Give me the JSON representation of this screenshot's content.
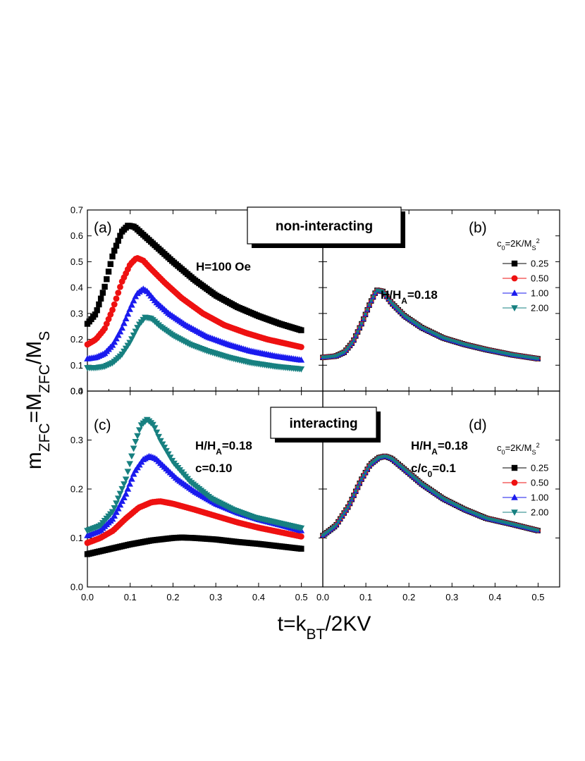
{
  "figure": {
    "y_axis_label": "m_ZFC=M_ZFC/M_S",
    "x_axis_label": "t=k_BT/2KV",
    "box_top": "non-interacting",
    "box_bottom": "interacting"
  },
  "colors": {
    "0.25": "#000000",
    "0.50": "#ee1111",
    "1.00": "#1a1aee",
    "2.00": "#178080"
  },
  "chart_data": [
    {
      "panel": "a",
      "type": "scatter",
      "label": "(a)",
      "annotations": [
        "H=100 Oe"
      ],
      "xlim": [
        0,
        0.55
      ],
      "ylim": [
        0,
        0.7
      ],
      "x_ticks": [
        "0.0",
        "0.1",
        "0.2",
        "0.3",
        "0.4",
        "0.5"
      ],
      "y_ticks": [
        "0.0",
        "0.1",
        "0.2",
        "0.3",
        "0.4",
        "0.5",
        "0.6",
        "0.7"
      ],
      "series": [
        {
          "marker": "square",
          "color": "#000000",
          "x": [
            0,
            0.02,
            0.04,
            0.06,
            0.08,
            0.095,
            0.11,
            0.13,
            0.16,
            0.2,
            0.25,
            0.3,
            0.35,
            0.4,
            0.45,
            0.5
          ],
          "y": [
            0.26,
            0.3,
            0.4,
            0.53,
            0.615,
            0.64,
            0.635,
            0.605,
            0.56,
            0.5,
            0.43,
            0.37,
            0.325,
            0.29,
            0.26,
            0.235
          ]
        },
        {
          "marker": "circle",
          "color": "#ee1111",
          "x": [
            0,
            0.02,
            0.04,
            0.06,
            0.08,
            0.1,
            0.115,
            0.13,
            0.15,
            0.18,
            0.22,
            0.27,
            0.32,
            0.37,
            0.42,
            0.46,
            0.5
          ],
          "y": [
            0.18,
            0.2,
            0.24,
            0.32,
            0.42,
            0.49,
            0.515,
            0.505,
            0.47,
            0.42,
            0.36,
            0.3,
            0.255,
            0.225,
            0.2,
            0.185,
            0.17
          ]
        },
        {
          "marker": "triangle-up",
          "color": "#1a1aee",
          "x": [
            0,
            0.02,
            0.04,
            0.06,
            0.08,
            0.1,
            0.115,
            0.13,
            0.14,
            0.16,
            0.19,
            0.23,
            0.28,
            0.33,
            0.38,
            0.44,
            0.5
          ],
          "y": [
            0.125,
            0.13,
            0.145,
            0.18,
            0.24,
            0.32,
            0.375,
            0.395,
            0.385,
            0.345,
            0.3,
            0.255,
            0.21,
            0.18,
            0.155,
            0.135,
            0.12
          ]
        },
        {
          "marker": "triangle-down",
          "color": "#178080",
          "x": [
            0,
            0.02,
            0.04,
            0.06,
            0.08,
            0.1,
            0.12,
            0.135,
            0.15,
            0.17,
            0.2,
            0.24,
            0.28,
            0.33,
            0.38,
            0.44,
            0.5
          ],
          "y": [
            0.09,
            0.09,
            0.095,
            0.11,
            0.14,
            0.19,
            0.255,
            0.285,
            0.28,
            0.25,
            0.215,
            0.18,
            0.155,
            0.13,
            0.11,
            0.095,
            0.085
          ]
        }
      ]
    },
    {
      "panel": "b",
      "type": "scatter",
      "label": "(b)",
      "annotations": [
        "H/H_A=0.18"
      ],
      "legend_title": "c_0=2K/M_S^2",
      "legend_placement": "top-right",
      "xlim": [
        0,
        0.55
      ],
      "ylim": [
        0,
        0.7
      ],
      "x_ticks": [
        "0.0",
        "0.1",
        "0.2",
        "0.3",
        "0.4",
        "0.5"
      ],
      "series": [
        {
          "name": "0.25",
          "marker": "square",
          "color": "#000000",
          "x": [
            0,
            0.03,
            0.05,
            0.07,
            0.09,
            0.11,
            0.125,
            0.14,
            0.16,
            0.19,
            0.23,
            0.28,
            0.33,
            0.38,
            0.44,
            0.5
          ],
          "y": [
            0.13,
            0.135,
            0.15,
            0.19,
            0.26,
            0.34,
            0.39,
            0.385,
            0.34,
            0.29,
            0.245,
            0.205,
            0.18,
            0.16,
            0.14,
            0.125
          ]
        },
        {
          "name": "0.50",
          "marker": "circle",
          "color": "#ee1111",
          "x": [
            0,
            0.03,
            0.05,
            0.07,
            0.09,
            0.11,
            0.125,
            0.14,
            0.16,
            0.19,
            0.23,
            0.28,
            0.33,
            0.38,
            0.44,
            0.5
          ],
          "y": [
            0.13,
            0.135,
            0.15,
            0.19,
            0.26,
            0.34,
            0.39,
            0.385,
            0.34,
            0.29,
            0.245,
            0.205,
            0.18,
            0.16,
            0.14,
            0.125
          ]
        },
        {
          "name": "1.00",
          "marker": "triangle-up",
          "color": "#1a1aee",
          "x": [
            0,
            0.03,
            0.05,
            0.07,
            0.09,
            0.11,
            0.125,
            0.14,
            0.16,
            0.19,
            0.23,
            0.28,
            0.33,
            0.38,
            0.44,
            0.5
          ],
          "y": [
            0.13,
            0.135,
            0.15,
            0.19,
            0.26,
            0.34,
            0.39,
            0.385,
            0.34,
            0.29,
            0.245,
            0.205,
            0.18,
            0.16,
            0.14,
            0.125
          ]
        },
        {
          "name": "2.00",
          "marker": "triangle-down",
          "color": "#178080",
          "x": [
            0,
            0.03,
            0.05,
            0.07,
            0.09,
            0.11,
            0.125,
            0.14,
            0.16,
            0.19,
            0.23,
            0.28,
            0.33,
            0.38,
            0.44,
            0.5
          ],
          "y": [
            0.13,
            0.135,
            0.15,
            0.19,
            0.26,
            0.34,
            0.39,
            0.385,
            0.34,
            0.29,
            0.245,
            0.205,
            0.18,
            0.16,
            0.14,
            0.125
          ]
        }
      ]
    },
    {
      "panel": "c",
      "type": "scatter",
      "label": "(c)",
      "annotations": [
        "H/H_A=0.18",
        "c=0.10"
      ],
      "xlim": [
        0,
        0.55
      ],
      "ylim": [
        0,
        0.4
      ],
      "x_ticks": [
        "0.0",
        "0.1",
        "0.2",
        "0.3",
        "0.4",
        "0.5"
      ],
      "y_ticks": [
        "0.0",
        "0.1",
        "0.2",
        "0.3",
        "0.4"
      ],
      "series": [
        {
          "marker": "square",
          "color": "#000000",
          "x": [
            0,
            0.05,
            0.1,
            0.15,
            0.2,
            0.22,
            0.25,
            0.3,
            0.35,
            0.4,
            0.45,
            0.5
          ],
          "y": [
            0.067,
            0.077,
            0.087,
            0.095,
            0.1,
            0.101,
            0.1,
            0.097,
            0.092,
            0.088,
            0.083,
            0.078
          ]
        },
        {
          "marker": "circle",
          "color": "#ee1111",
          "x": [
            0,
            0.03,
            0.06,
            0.09,
            0.12,
            0.15,
            0.17,
            0.2,
            0.25,
            0.3,
            0.35,
            0.4,
            0.45,
            0.5
          ],
          "y": [
            0.09,
            0.1,
            0.115,
            0.14,
            0.162,
            0.173,
            0.175,
            0.17,
            0.158,
            0.145,
            0.132,
            0.121,
            0.112,
            0.103
          ]
        },
        {
          "marker": "triangle-up",
          "color": "#1a1aee",
          "x": [
            0,
            0.03,
            0.06,
            0.09,
            0.11,
            0.13,
            0.145,
            0.16,
            0.18,
            0.21,
            0.25,
            0.3,
            0.35,
            0.4,
            0.45,
            0.5
          ],
          "y": [
            0.105,
            0.115,
            0.14,
            0.19,
            0.235,
            0.26,
            0.267,
            0.262,
            0.245,
            0.22,
            0.195,
            0.17,
            0.152,
            0.138,
            0.127,
            0.115
          ]
        },
        {
          "marker": "triangle-down",
          "color": "#178080",
          "x": [
            0,
            0.03,
            0.06,
            0.09,
            0.11,
            0.125,
            0.14,
            0.155,
            0.17,
            0.2,
            0.24,
            0.29,
            0.34,
            0.39,
            0.45,
            0.5
          ],
          "y": [
            0.115,
            0.125,
            0.155,
            0.22,
            0.29,
            0.33,
            0.342,
            0.33,
            0.3,
            0.255,
            0.215,
            0.18,
            0.158,
            0.142,
            0.13,
            0.12
          ]
        }
      ]
    },
    {
      "panel": "d",
      "type": "scatter",
      "label": "(d)",
      "annotations": [
        "H/H_A=0.18",
        "c/c_0=0.1"
      ],
      "legend_title": "c_0=2K/M_S^2",
      "legend_placement": "top-right",
      "xlim": [
        0,
        0.55
      ],
      "ylim": [
        0,
        0.4
      ],
      "x_ticks": [
        "0.0",
        "0.1",
        "0.2",
        "0.3",
        "0.4",
        "0.5"
      ],
      "series": [
        {
          "name": "0.25",
          "marker": "square",
          "color": "#000000",
          "x": [
            0,
            0.03,
            0.06,
            0.09,
            0.11,
            0.13,
            0.145,
            0.16,
            0.19,
            0.23,
            0.28,
            0.33,
            0.38,
            0.44,
            0.5
          ],
          "y": [
            0.105,
            0.125,
            0.165,
            0.22,
            0.25,
            0.264,
            0.267,
            0.262,
            0.24,
            0.21,
            0.18,
            0.158,
            0.14,
            0.128,
            0.115
          ]
        },
        {
          "name": "0.50",
          "marker": "circle",
          "color": "#ee1111",
          "x": [
            0,
            0.03,
            0.06,
            0.09,
            0.11,
            0.13,
            0.145,
            0.16,
            0.19,
            0.23,
            0.28,
            0.33,
            0.38,
            0.44,
            0.5
          ],
          "y": [
            0.105,
            0.125,
            0.165,
            0.22,
            0.25,
            0.264,
            0.267,
            0.262,
            0.24,
            0.21,
            0.18,
            0.158,
            0.14,
            0.128,
            0.115
          ]
        },
        {
          "name": "1.00",
          "marker": "triangle-up",
          "color": "#1a1aee",
          "x": [
            0,
            0.03,
            0.06,
            0.09,
            0.11,
            0.13,
            0.145,
            0.16,
            0.19,
            0.23,
            0.28,
            0.33,
            0.38,
            0.44,
            0.5
          ],
          "y": [
            0.105,
            0.125,
            0.165,
            0.22,
            0.25,
            0.264,
            0.267,
            0.262,
            0.24,
            0.21,
            0.18,
            0.158,
            0.14,
            0.128,
            0.115
          ]
        },
        {
          "name": "2.00",
          "marker": "triangle-down",
          "color": "#178080",
          "x": [
            0,
            0.03,
            0.06,
            0.09,
            0.11,
            0.13,
            0.145,
            0.16,
            0.19,
            0.23,
            0.28,
            0.33,
            0.38,
            0.44,
            0.5
          ],
          "y": [
            0.105,
            0.125,
            0.165,
            0.22,
            0.25,
            0.264,
            0.267,
            0.262,
            0.24,
            0.21,
            0.18,
            0.158,
            0.14,
            0.128,
            0.115
          ]
        }
      ]
    }
  ]
}
